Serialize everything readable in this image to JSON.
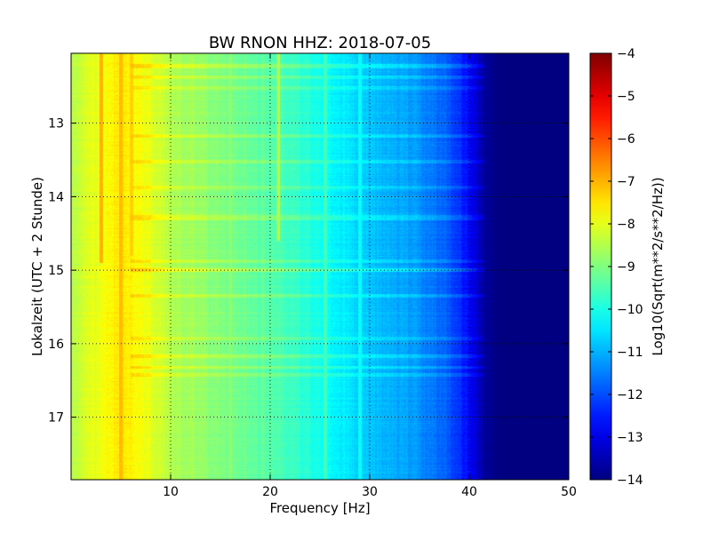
{
  "chart_data": {
    "type": "heatmap",
    "title": "BW RNON HHZ: 2018-07-05",
    "xlabel": "Frequency [Hz]",
    "ylabel": "Lokalzeit (UTC + 2 Stunde)",
    "xlim": [
      0,
      50
    ],
    "ylim": [
      12.05,
      17.85
    ],
    "y_inverted": true,
    "x_ticks": [
      10,
      20,
      30,
      40,
      50
    ],
    "y_ticks": [
      13,
      14,
      15,
      16,
      17
    ],
    "grid": true,
    "colormap": "jet",
    "colorbar": {
      "label": "Log10(Sqrt(m**2/s**2/Hz))",
      "range": [
        -14,
        -4
      ],
      "ticks": [
        -4,
        -5,
        -6,
        -7,
        -8,
        -9,
        -10,
        -11,
        -12,
        -13,
        -14
      ]
    },
    "frequency_profile": {
      "frequency_hz": [
        0,
        3,
        5,
        8,
        10,
        15,
        20,
        25,
        30,
        35,
        38,
        40,
        41.5,
        43,
        50
      ],
      "log_amplitude": [
        -8.4,
        -7.9,
        -7.5,
        -8.0,
        -8.5,
        -9.0,
        -9.4,
        -10.1,
        -10.8,
        -11.3,
        -11.9,
        -12.7,
        -13.7,
        -14.0,
        -14.0
      ]
    },
    "spectral_lines": [
      {
        "frequency_hz": 3.0,
        "start_hour": 12.05,
        "end_hour": 14.9,
        "log_amplitude": -7.0
      },
      {
        "frequency_hz": 5.0,
        "start_hour": 12.05,
        "end_hour": 17.85,
        "log_amplitude": -7.1
      },
      {
        "frequency_hz": 6.1,
        "start_hour": 12.05,
        "end_hour": 14.8,
        "log_amplitude": -7.3
      },
      {
        "frequency_hz": 16.0,
        "start_hour": 12.05,
        "end_hour": 17.85,
        "log_amplitude": -8.9
      },
      {
        "frequency_hz": 20.8,
        "start_hour": 12.05,
        "end_hour": 14.6,
        "log_amplitude": -8.6
      },
      {
        "frequency_hz": 25.5,
        "start_hour": 12.05,
        "end_hour": 17.85,
        "log_amplitude": -9.6
      },
      {
        "frequency_hz": 29.0,
        "start_hour": 12.05,
        "end_hour": 17.85,
        "log_amplitude": -10.2
      }
    ],
    "noise_bands": [
      {
        "start_hour": 12.2,
        "end_hour": 12.25,
        "level": 1.0
      },
      {
        "start_hour": 12.35,
        "end_hour": 12.4,
        "level": 0.8
      },
      {
        "start_hour": 12.5,
        "end_hour": 12.55,
        "level": 0.7
      },
      {
        "start_hour": 13.15,
        "end_hour": 13.2,
        "level": 0.8
      },
      {
        "start_hour": 13.5,
        "end_hour": 13.55,
        "level": 0.9
      },
      {
        "start_hour": 13.85,
        "end_hour": 13.9,
        "level": 0.7
      },
      {
        "start_hour": 14.25,
        "end_hour": 14.32,
        "level": 0.9
      },
      {
        "start_hour": 14.85,
        "end_hour": 14.9,
        "level": 0.7
      },
      {
        "start_hour": 14.98,
        "end_hour": 15.02,
        "level": 1.2
      },
      {
        "start_hour": 15.33,
        "end_hour": 15.37,
        "level": 0.9
      },
      {
        "start_hour": 15.9,
        "end_hour": 15.95,
        "level": 0.7
      },
      {
        "start_hour": 16.15,
        "end_hour": 16.2,
        "level": 0.9
      },
      {
        "start_hour": 16.3,
        "end_hour": 16.34,
        "level": 0.9
      },
      {
        "start_hour": 16.4,
        "end_hour": 16.45,
        "level": 0.8
      }
    ]
  }
}
